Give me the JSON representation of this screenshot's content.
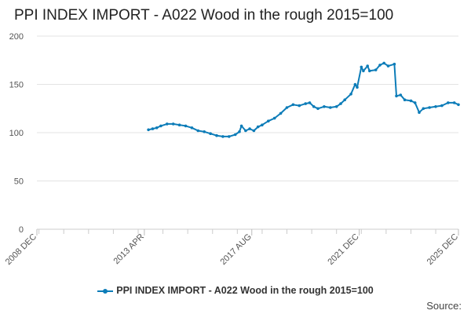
{
  "chart_data": {
    "type": "line",
    "title": "PPI INDEX IMPORT - A022 Wood in the rough 2015=100",
    "xlabel": "",
    "ylabel": "",
    "ylim": [
      0,
      200
    ],
    "xlim": [
      "2008-12",
      "2025-12"
    ],
    "y_ticks": [
      0,
      50,
      100,
      150,
      200
    ],
    "x_ticks": [
      "2008 DEC",
      "2013 APR",
      "2017 AUG",
      "2021 DEC",
      "2025 DEC"
    ],
    "grid": "horizontal",
    "legend_position": "bottom",
    "color": "#0c7cb8",
    "series": [
      {
        "name": "PPI INDEX IMPORT - A022 Wood in the rough 2015=100",
        "points": [
          [
            "2013-06",
            103
          ],
          [
            "2013-08",
            104
          ],
          [
            "2013-10",
            105
          ],
          [
            "2013-12",
            107
          ],
          [
            "2014-03",
            109
          ],
          [
            "2014-06",
            109
          ],
          [
            "2014-09",
            108
          ],
          [
            "2014-12",
            107
          ],
          [
            "2015-03",
            105
          ],
          [
            "2015-06",
            102
          ],
          [
            "2015-09",
            101
          ],
          [
            "2015-12",
            99
          ],
          [
            "2016-03",
            97
          ],
          [
            "2016-06",
            96
          ],
          [
            "2016-09",
            96
          ],
          [
            "2016-12",
            98
          ],
          [
            "2017-02",
            101
          ],
          [
            "2017-03",
            107
          ],
          [
            "2017-05",
            102
          ],
          [
            "2017-07",
            104
          ],
          [
            "2017-09",
            102
          ],
          [
            "2017-11",
            106
          ],
          [
            "2018-01",
            108
          ],
          [
            "2018-04",
            112
          ],
          [
            "2018-07",
            115
          ],
          [
            "2018-10",
            120
          ],
          [
            "2019-01",
            126
          ],
          [
            "2019-04",
            129
          ],
          [
            "2019-07",
            128
          ],
          [
            "2019-10",
            130
          ],
          [
            "2019-12",
            131
          ],
          [
            "2020-02",
            127
          ],
          [
            "2020-04",
            125
          ],
          [
            "2020-07",
            127
          ],
          [
            "2020-10",
            126
          ],
          [
            "2021-01",
            127
          ],
          [
            "2021-03",
            130
          ],
          [
            "2021-05",
            134
          ],
          [
            "2021-08",
            140
          ],
          [
            "2021-10",
            150
          ],
          [
            "2021-11",
            147
          ],
          [
            "2022-01",
            168
          ],
          [
            "2022-02",
            164
          ],
          [
            "2022-04",
            169
          ],
          [
            "2022-05",
            164
          ],
          [
            "2022-08",
            165
          ],
          [
            "2022-10",
            170
          ],
          [
            "2022-12",
            172
          ],
          [
            "2023-02",
            169
          ],
          [
            "2023-05",
            171
          ],
          [
            "2023-06",
            138
          ],
          [
            "2023-08",
            139
          ],
          [
            "2023-10",
            134
          ],
          [
            "2024-01",
            133
          ],
          [
            "2024-03",
            131
          ],
          [
            "2024-05",
            121
          ],
          [
            "2024-07",
            125
          ],
          [
            "2024-10",
            126
          ],
          [
            "2025-01",
            127
          ],
          [
            "2025-04",
            128
          ],
          [
            "2025-07",
            131
          ],
          [
            "2025-10",
            131
          ],
          [
            "2025-12",
            129
          ]
        ]
      }
    ]
  },
  "source_label": "Source:"
}
